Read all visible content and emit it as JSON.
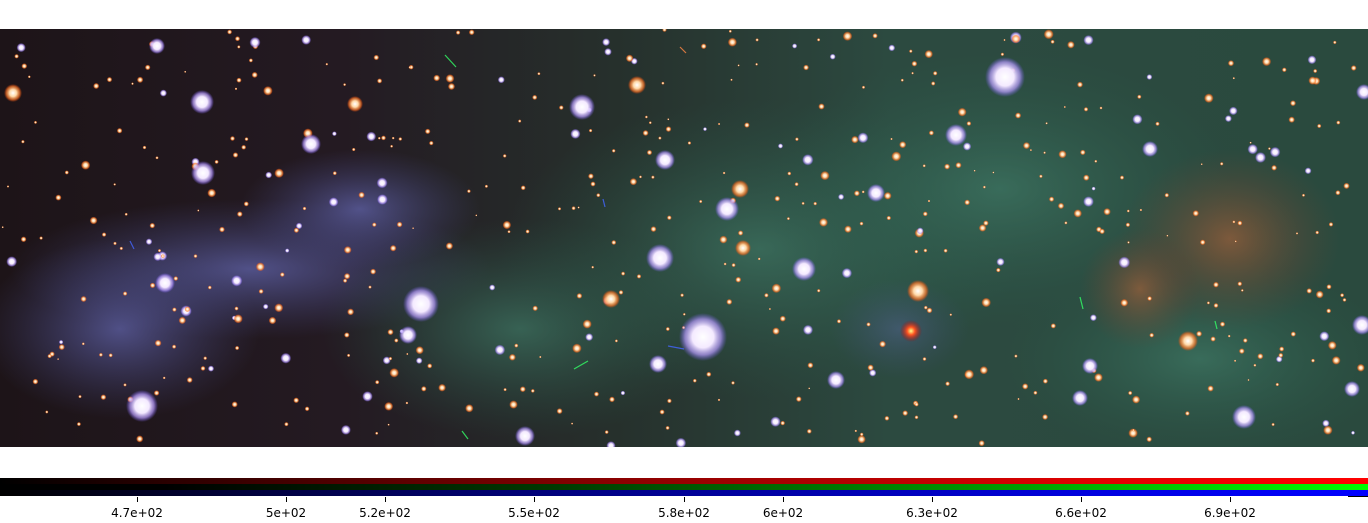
{
  "image": {
    "description_name": "star-field-nebula"
  },
  "colorbar": {
    "channels": [
      "red",
      "green",
      "blue"
    ],
    "colors": {
      "red": "#ff0000",
      "green": "#00ff00",
      "blue": "#0000ff"
    },
    "ticks": [
      {
        "label": "4.7e+02",
        "value": 470
      },
      {
        "label": "5e+02",
        "value": 500
      },
      {
        "label": "5.2e+02",
        "value": 520
      },
      {
        "label": "5.5e+02",
        "value": 550
      },
      {
        "label": "5.8e+02",
        "value": 580
      },
      {
        "label": "6e+02",
        "value": 600
      },
      {
        "label": "6.3e+02",
        "value": 630
      },
      {
        "label": "6.6e+02",
        "value": 660
      },
      {
        "label": "6.9e+02",
        "value": 690
      }
    ],
    "range": [
      440,
      720
    ]
  }
}
